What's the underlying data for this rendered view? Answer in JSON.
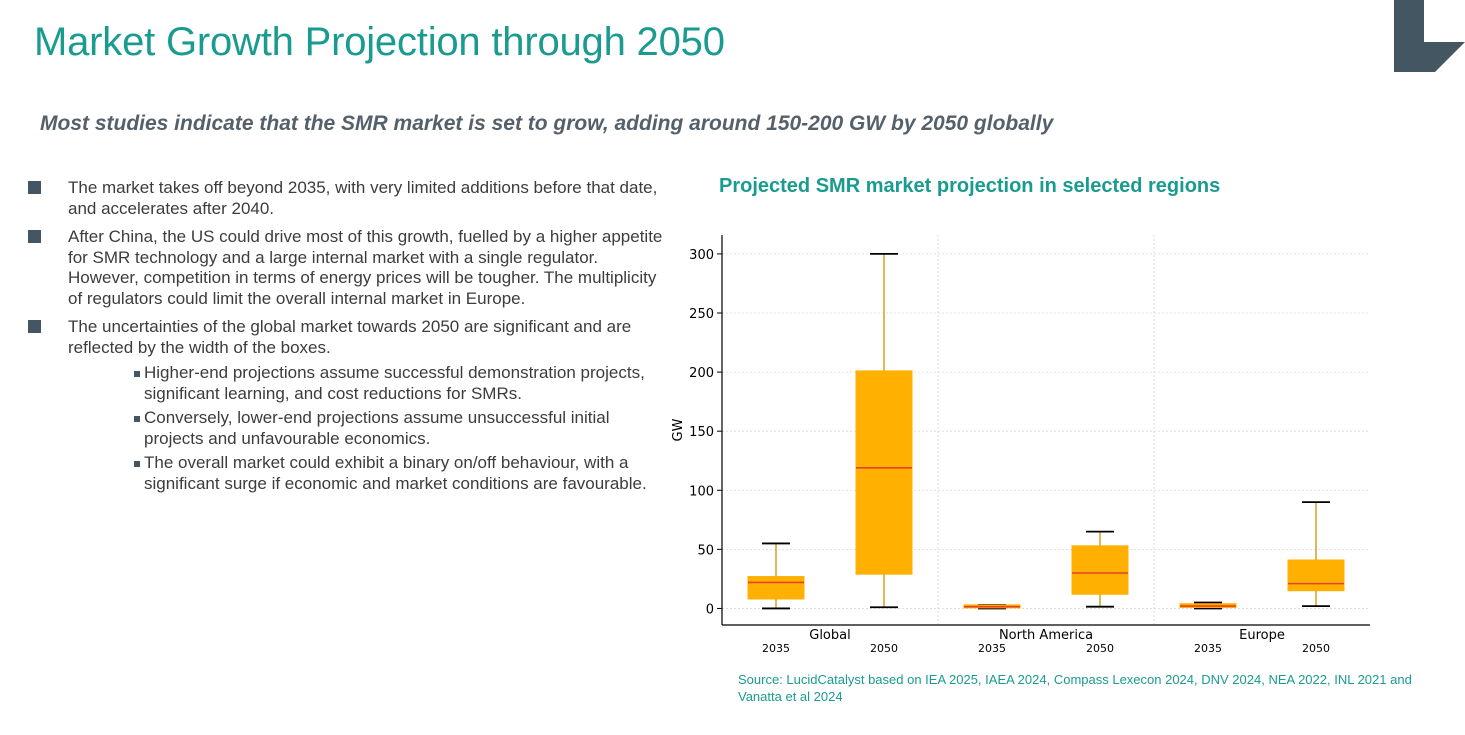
{
  "slide": {
    "title": "Market Growth Projection through 2050",
    "subtitle": "Most studies indicate that the SMR market is set to grow, adding around 150-200 GW by 2050 globally"
  },
  "bullets": [
    {
      "text": "The market takes off beyond 2035, with very limited additions before that date, and accelerates after 2040."
    },
    {
      "text": "After China, the US could drive most of this growth, fuelled by a higher appetite for SMR technology and a large internal market with a single regulator. However, competition in terms of energy prices will be tougher. The multiplicity of regulators could limit the overall internal market in Europe."
    },
    {
      "text": "The uncertainties of the global market towards 2050 are significant and are reflected by the width of the boxes.",
      "sub": [
        "Higher-end projections assume successful demonstration projects, significant learning, and cost reductions for SMRs.",
        "Conversely, lower-end projections assume unsuccessful initial projects and unfavourable economics.",
        "The overall market could exhibit a binary on/off behaviour, with a significant surge if economic and market conditions are favourable."
      ]
    }
  ],
  "chart_title": "Projected SMR market projection in selected regions",
  "source": "Source: LucidCatalyst based on IEA 2025, IAEA 2024, Compass Lexecon 2024, DNV 2024, NEA 2022, INL 2021 and Vanatta et al 2024",
  "colors": {
    "teal": "#1a9b90",
    "box_fill": "#ffb000",
    "median": "#e8412c",
    "whisker": "#d4a020",
    "logo": "#455663"
  },
  "chart_data": {
    "type": "box",
    "ylabel": "GW",
    "ylim": [
      -14,
      316
    ],
    "yticks": [
      0,
      50,
      100,
      150,
      200,
      250,
      300
    ],
    "grid": true,
    "groups": [
      {
        "label": "Global",
        "boxes": [
          {
            "label": "2035",
            "min": 0,
            "q1": 8,
            "median": 22,
            "q3": 27,
            "max": 55
          },
          {
            "label": "2050",
            "min": 1,
            "q1": 29,
            "median": 119,
            "q3": 201,
            "max": 300
          }
        ]
      },
      {
        "label": "North America",
        "boxes": [
          {
            "label": "2035",
            "min": 0,
            "q1": 0.5,
            "median": 1.5,
            "q3": 3,
            "max": 3
          },
          {
            "label": "2050",
            "min": 1.5,
            "q1": 12,
            "median": 30,
            "q3": 53,
            "max": 65
          }
        ]
      },
      {
        "label": "Europe",
        "boxes": [
          {
            "label": "2035",
            "min": 0,
            "q1": 0.8,
            "median": 2,
            "q3": 4,
            "max": 5
          },
          {
            "label": "2050",
            "min": 2,
            "q1": 15,
            "median": 21,
            "q3": 41,
            "max": 90
          }
        ]
      }
    ]
  }
}
